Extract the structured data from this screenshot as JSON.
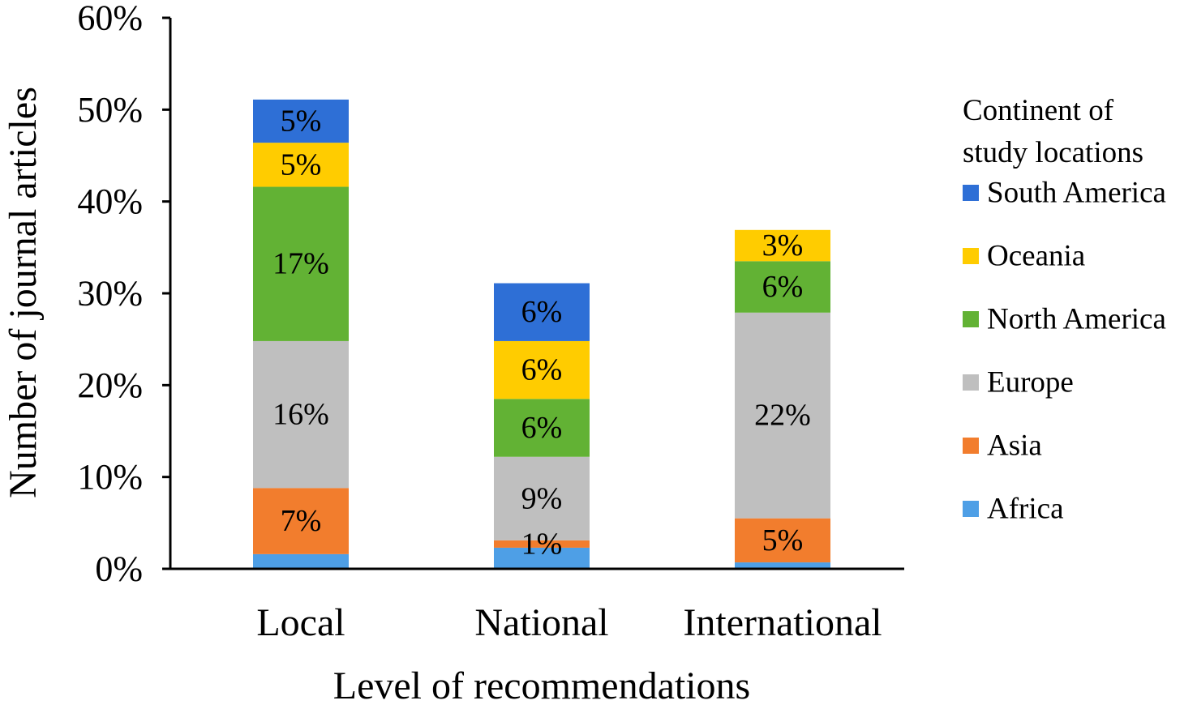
{
  "chart_data": {
    "type": "bar",
    "stacked": true,
    "xlabel": "Level of recommendations",
    "ylabel": "Number of journal articles",
    "ylim": [
      0,
      60
    ],
    "yticks": [
      "0%",
      "10%",
      "20%",
      "30%",
      "40%",
      "50%",
      "60%"
    ],
    "grid": false,
    "categories": [
      "Local",
      "National",
      "International"
    ],
    "legend": {
      "title": "Continent of study locations",
      "title_lines": [
        "Continent of",
        "study locations"
      ],
      "placement": "right",
      "order": [
        "South America",
        "Oceania",
        "North America",
        "Europe",
        "Asia",
        "Africa"
      ]
    },
    "series": [
      {
        "name": "Africa",
        "color": "#4E9FE6",
        "values": [
          1.6,
          2.3,
          0.7
        ],
        "labels": [
          "",
          "",
          ""
        ]
      },
      {
        "name": "Asia",
        "color": "#F27D2D",
        "values": [
          7.2,
          0.8,
          4.8
        ],
        "labels": [
          "7%",
          "1%",
          "5%"
        ]
      },
      {
        "name": "Europe",
        "color": "#BFBFBF",
        "values": [
          16.0,
          9.1,
          22.4
        ],
        "labels": [
          "16%",
          "9%",
          "22%"
        ]
      },
      {
        "name": "North America",
        "color": "#62B234",
        "values": [
          16.8,
          6.3,
          5.6
        ],
        "labels": [
          "17%",
          "6%",
          "6%"
        ]
      },
      {
        "name": "Oceania",
        "color": "#FFCC00",
        "values": [
          4.8,
          6.3,
          3.4
        ],
        "labels": [
          "5%",
          "6%",
          "3%"
        ]
      },
      {
        "name": "South America",
        "color": "#2E6FD6",
        "values": [
          4.7,
          6.3,
          0
        ],
        "labels": [
          "5%",
          "6%",
          ""
        ]
      }
    ]
  }
}
